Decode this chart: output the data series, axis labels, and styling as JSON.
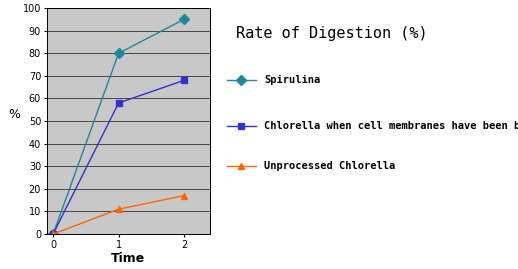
{
  "title": "Rate of Digestion (%)",
  "xlabel": "Time",
  "ylabel": "%",
  "xlim": [
    -0.1,
    2.4
  ],
  "ylim": [
    0,
    100
  ],
  "xticks": [
    0,
    1,
    2
  ],
  "yticks": [
    0,
    10,
    20,
    30,
    40,
    50,
    60,
    70,
    80,
    90,
    100
  ],
  "series": [
    {
      "label": "Spirulina",
      "x": [
        0,
        1,
        2
      ],
      "y": [
        0,
        80,
        95
      ],
      "color": "#1E8899",
      "marker": "D",
      "markersize": 5,
      "linestyle": "-"
    },
    {
      "label": "Chlorella when cell membranes have been broken",
      "x": [
        0,
        1,
        2
      ],
      "y": [
        0,
        58,
        68
      ],
      "color": "#3333CC",
      "marker": "s",
      "markersize": 5,
      "linestyle": "-"
    },
    {
      "label": "Unprocessed Chlorella",
      "x": [
        0,
        1,
        2
      ],
      "y": [
        0,
        11,
        17
      ],
      "color": "#FF6600",
      "marker": "^",
      "markersize": 5,
      "linestyle": "-"
    }
  ],
  "plot_bg_color": "#C8C8C8",
  "fig_bg_color": "#ffffff",
  "title_fontsize": 11,
  "axis_label_fontsize": 9,
  "tick_fontsize": 7,
  "legend_fontsize": 7.5
}
